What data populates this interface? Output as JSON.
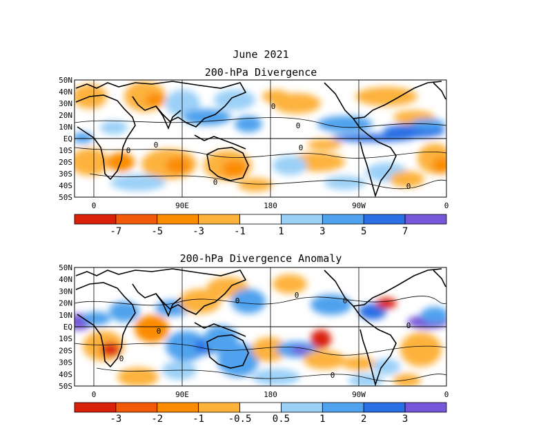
{
  "chart_data": [
    {
      "type": "heatmap",
      "title": "June 2021",
      "subtitle": "200-hPa Divergence",
      "xlabels": [
        "0",
        "90E",
        "180",
        "90W",
        "0"
      ],
      "ylabels": [
        "50N",
        "40N",
        "30N",
        "20N",
        "10N",
        "EQ",
        "10S",
        "20S",
        "30S",
        "40S",
        "50S"
      ],
      "contour_label": "0",
      "colorbar": {
        "labels": [
          "-7",
          "-5",
          "-3",
          "-1",
          "1",
          "3",
          "5",
          "7"
        ],
        "colors": [
          "#d92008",
          "#f25a08",
          "#fb8c00",
          "#fdb23c",
          "#ffffff",
          "#9bd0f7",
          "#4fa2ee",
          "#2a6fe4",
          "#7757d9"
        ]
      }
    },
    {
      "type": "heatmap",
      "title": "200-hPa Divergence Anomaly",
      "xlabels": [
        "0",
        "90E",
        "180",
        "90W",
        "0"
      ],
      "ylabels": [
        "50N",
        "40N",
        "30N",
        "20N",
        "10N",
        "EQ",
        "10S",
        "20S",
        "30S",
        "40S",
        "50S"
      ],
      "contour_label": "0",
      "colorbar": {
        "labels": [
          "-3",
          "-2",
          "-1",
          "-0.5",
          "0.5",
          "1",
          "2",
          "3"
        ],
        "colors": [
          "#d92008",
          "#f25a08",
          "#fb8c00",
          "#fdb23c",
          "#ffffff",
          "#9bd0f7",
          "#4fa2ee",
          "#2a6fe4",
          "#7757d9"
        ]
      }
    }
  ]
}
